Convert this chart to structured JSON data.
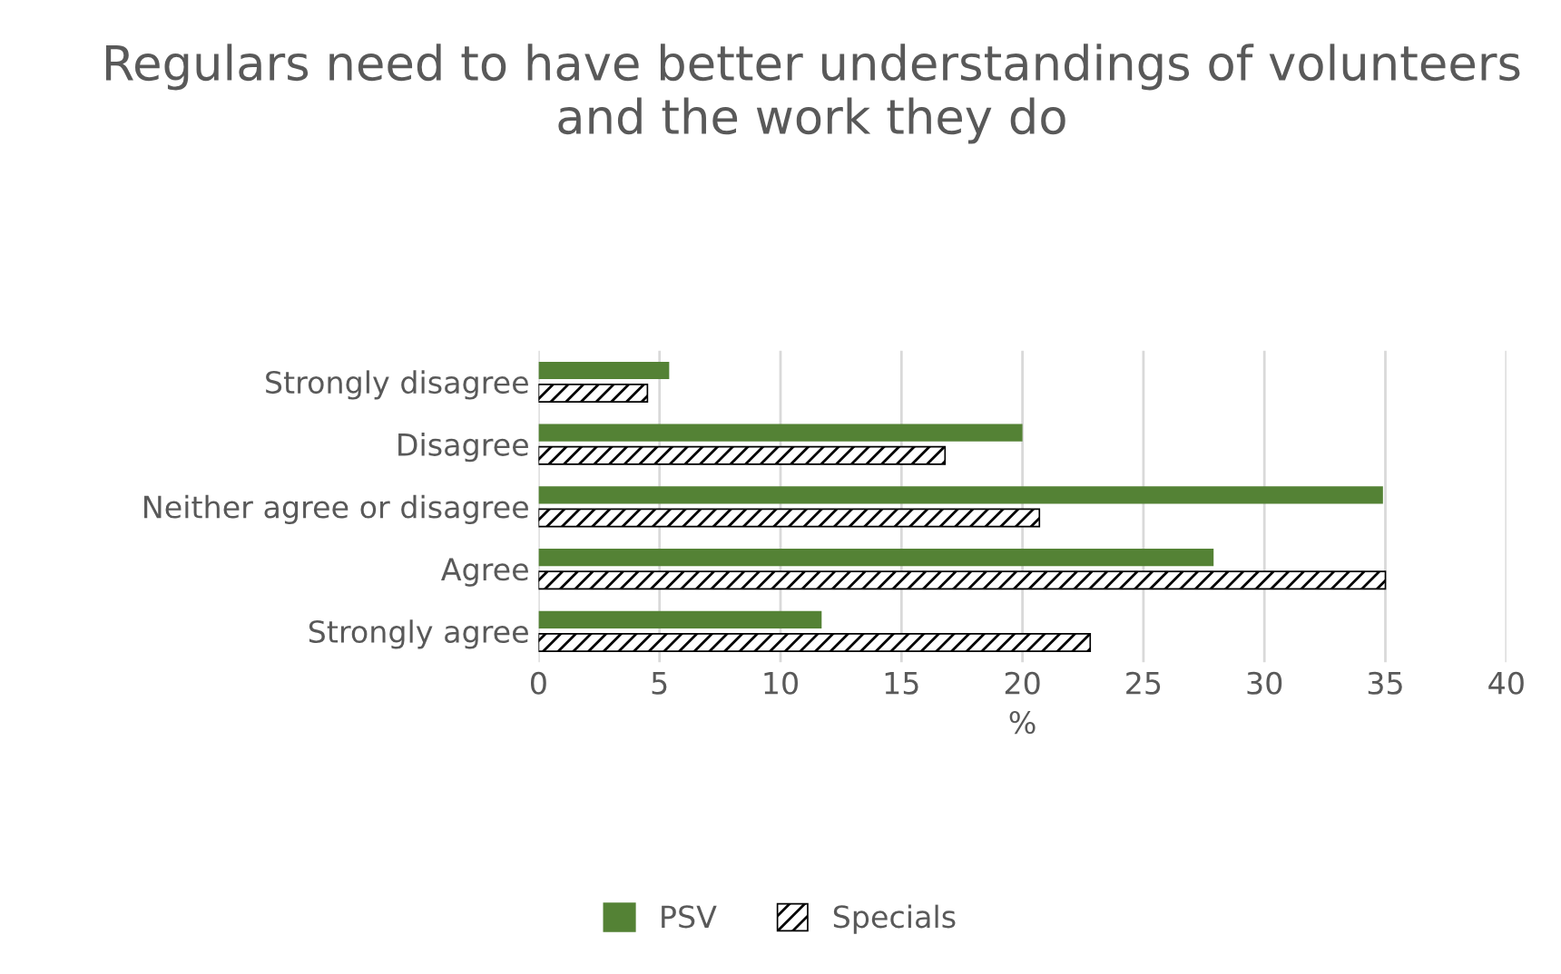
{
  "chart_data": {
    "type": "bar",
    "orientation": "horizontal",
    "title": "Regulars need to have better understandings of volunteers and the work they do",
    "xlabel": "%",
    "categories": [
      "Strongly disagree",
      "Disagree",
      "Neither agree or disagree",
      "Agree",
      "Strongly agree"
    ],
    "series": [
      {
        "name": "PSV",
        "color": "#548235",
        "values": [
          5.4,
          20,
          34.9,
          27.9,
          11.7
        ]
      },
      {
        "name": "Specials",
        "color": "#000000",
        "values": [
          4.5,
          16.8,
          20.7,
          35.0,
          22.8
        ]
      }
    ],
    "xlim": [
      0,
      40
    ],
    "xticks": [
      0,
      5,
      10,
      15,
      20,
      25,
      30,
      35,
      40
    ],
    "grid": "x",
    "legend": "bottom"
  }
}
